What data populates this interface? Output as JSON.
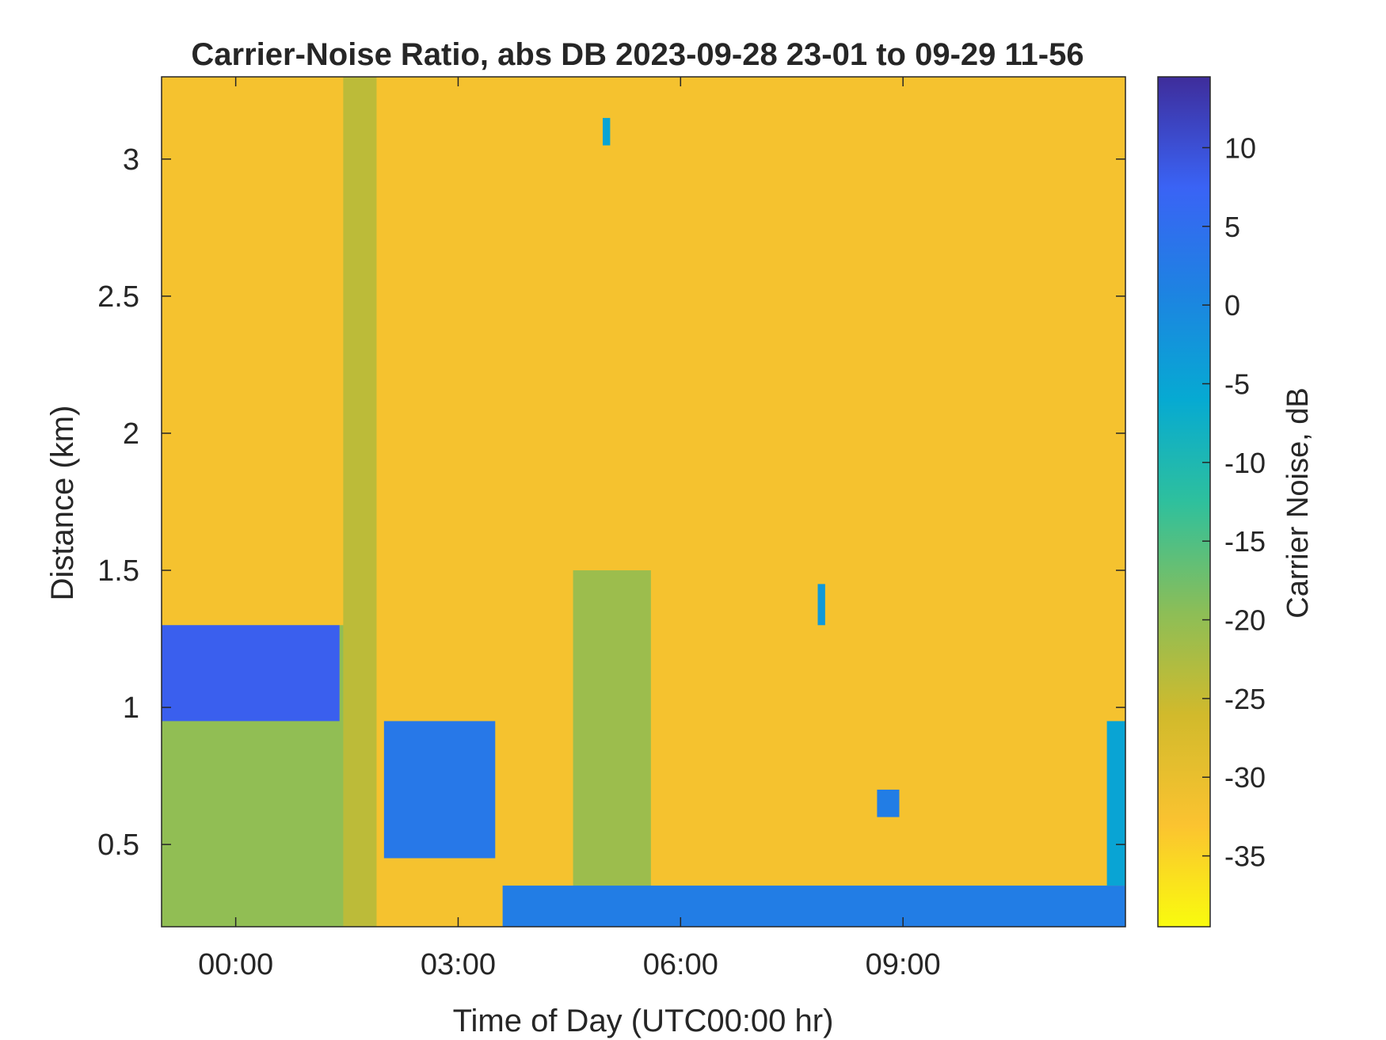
{
  "chart_data": {
    "type": "heatmap",
    "title": "Carrier-Noise Ratio, abs DB 2023-09-28 23-01 to 09-29 11-56",
    "xlabel": "Time of Day (UTC00:00 hr)",
    "ylabel": "Distance (km)",
    "colorbar_label": "Carrier Noise, dB",
    "colormap": "parula (reversed: high = dark blue, low = yellow)",
    "x_ticks": [
      "00:00",
      "03:00",
      "06:00",
      "09:00"
    ],
    "x_tick_values_hours": [
      0,
      3,
      6,
      9
    ],
    "xlim_hours": [
      -1.0,
      12.0
    ],
    "y_ticks": [
      "0.5",
      "1",
      "1.5",
      "2",
      "2.5",
      "3"
    ],
    "y_tick_values": [
      0.5,
      1,
      1.5,
      2,
      2.5,
      3
    ],
    "ylim": [
      0.2,
      3.3
    ],
    "colorbar_ticks": [
      "10",
      "5",
      "0",
      "-5",
      "-10",
      "-15",
      "-20",
      "-25",
      "-30",
      "-35"
    ],
    "colorbar_tick_values": [
      10,
      5,
      0,
      -5,
      -10,
      -15,
      -20,
      -25,
      -30,
      -35
    ],
    "clim": [
      -39.5,
      14.5
    ],
    "background_value_db": -32,
    "features": [
      {
        "name": "boundary-layer signal",
        "time_hours": [
          -1.0,
          1.8
        ],
        "distance_km": [
          0.2,
          1.3
        ],
        "value_db": -20
      },
      {
        "name": "strong layer at top of boundary layer",
        "time_hours": [
          -1.0,
          1.4
        ],
        "distance_km": [
          0.95,
          1.3
        ],
        "value_db": 8
      },
      {
        "name": "descending layer",
        "time_hours": [
          2.0,
          3.5
        ],
        "distance_km": [
          0.45,
          0.95
        ],
        "value_db": 3
      },
      {
        "name": "vertical streak",
        "time_hours": [
          1.45,
          1.9
        ],
        "distance_km": [
          0.2,
          3.3
        ],
        "value_db": -24
      },
      {
        "name": "vertical streak",
        "time_hours": [
          4.55,
          5.6
        ],
        "distance_km": [
          0.2,
          1.5
        ],
        "value_db": -21
      },
      {
        "name": "near-surface band",
        "time_hours": [
          3.6,
          12.0
        ],
        "distance_km": [
          0.2,
          0.35
        ],
        "value_db": 2
      },
      {
        "name": "isolated feature",
        "time_hours": [
          4.95,
          5.05
        ],
        "distance_km": [
          3.05,
          3.15
        ],
        "value_db": -5
      },
      {
        "name": "isolated feature",
        "time_hours": [
          7.85,
          7.95
        ],
        "distance_km": [
          1.3,
          1.45
        ],
        "value_db": -3
      },
      {
        "name": "isolated feature",
        "time_hours": [
          8.65,
          8.95
        ],
        "distance_km": [
          0.6,
          0.7
        ],
        "value_db": 2
      },
      {
        "name": "isolated feature",
        "time_hours": [
          11.75,
          12.0
        ],
        "distance_km": [
          0.35,
          0.95
        ],
        "value_db": -5
      }
    ]
  }
}
